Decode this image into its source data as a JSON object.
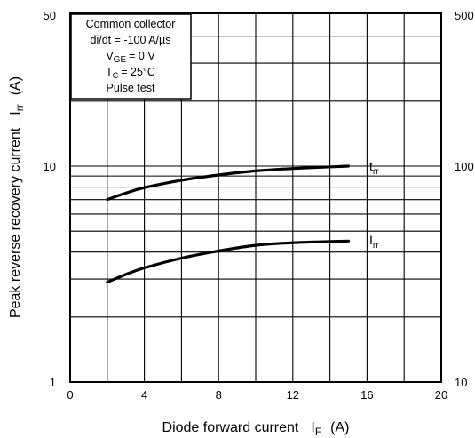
{
  "chart_data": {
    "type": "line",
    "xlabel": "Diode forward current",
    "xlabel_symbol": "I",
    "xlabel_symbol_sub": "F",
    "xlabel_unit": "(A)",
    "ylabel": "Peak reverse recovery current",
    "ylabel_symbol": "I",
    "ylabel_symbol_sub": "rr",
    "ylabel_unit": "(A)",
    "xlim": [
      0,
      20
    ],
    "x_ticks": [
      "0",
      "4",
      "8",
      "12",
      "16",
      "20"
    ],
    "y_left_scale": "log",
    "y_left_lim": [
      1,
      50
    ],
    "y_left_ticks": [
      "1",
      "10",
      "50"
    ],
    "y_right_scale": "log",
    "y_right_lim": [
      10,
      500
    ],
    "y_right_ticks": [
      "10",
      "100",
      "500"
    ],
    "grid": true,
    "conditions": {
      "line1": "Common collector",
      "line2": "di/dt = -100 A/µs",
      "line3_symbol": "V",
      "line3_sub": "GE",
      "line3_rest": "= 0 V",
      "line4_symbol": "T",
      "line4_sub": "C",
      "line4_rest": "= 25°C",
      "line5": "Pulse test"
    },
    "series": [
      {
        "name": "trr",
        "label_main": "t",
        "label_sub": "rr",
        "axis": "right",
        "x": [
          2,
          3,
          4,
          6,
          8,
          10,
          12,
          15
        ],
        "values": [
          70,
          75,
          79.5,
          86,
          91,
          95,
          97.5,
          100
        ]
      },
      {
        "name": "Irr",
        "label_main": "I",
        "label_sub": "rr",
        "axis": "left",
        "x": [
          2,
          3,
          4,
          6,
          8,
          10,
          12,
          15
        ],
        "values": [
          2.9,
          3.15,
          3.38,
          3.75,
          4.05,
          4.3,
          4.42,
          4.5
        ]
      }
    ]
  }
}
